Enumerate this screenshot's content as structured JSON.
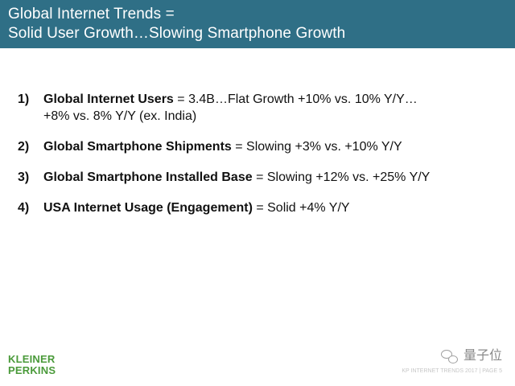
{
  "header": {
    "line1": "Global Internet Trends =",
    "line2": "Solid User Growth…Slowing Smartphone Growth"
  },
  "items": [
    {
      "number": "1)",
      "bold": "Global Internet Users",
      "rest_line1": " = 3.4B…Flat Growth +10% vs. 10% Y/Y…",
      "rest_line2": "+8% vs. 8% Y/Y (ex. India)"
    },
    {
      "number": "2)",
      "bold": "Global Smartphone Shipments",
      "rest_line1": " = Slowing +3% vs. +10% Y/Y"
    },
    {
      "number": "3)",
      "bold": "Global Smartphone Installed Base",
      "rest_line1": " = Slowing +12% vs. +25% Y/Y"
    },
    {
      "number": "4)",
      "bold": "USA Internet Usage (Engagement)",
      "rest_line1": " = Solid +4% Y/Y"
    }
  ],
  "logo": {
    "line1": "KLEINER",
    "line2": "PERKINS"
  },
  "watermark": {
    "text": "量子位",
    "icon": "wechat-icon"
  },
  "footer": {
    "text": "KP INTERNET TRENDS 2017 | PAGE 5"
  },
  "colors": {
    "header_bg": "#2f6f86",
    "logo_green": "#4a9a3a",
    "text": "#111111"
  }
}
